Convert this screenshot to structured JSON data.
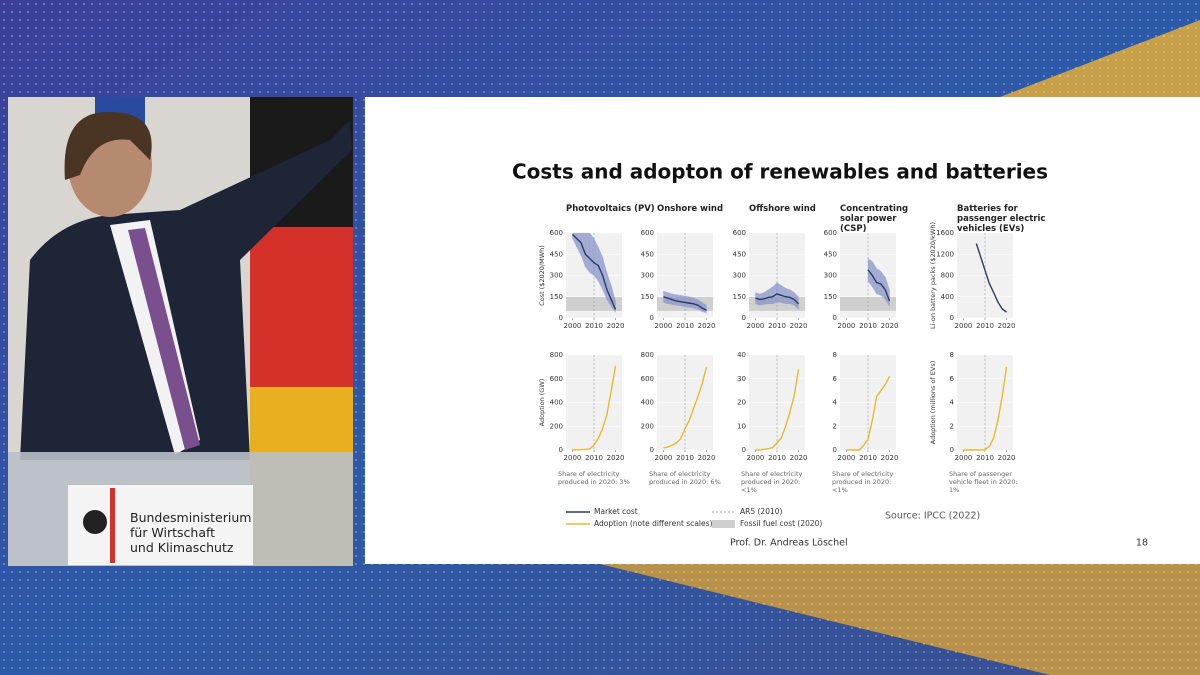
{
  "slide": {
    "title": "Costs and adopton of renewables and batteries",
    "source": "Source: IPCC (2022)",
    "presenter": "Prof. Dr. Andreas Löschel",
    "page": "18",
    "legend": [
      "Market cost",
      "Adoption (note different scales)",
      "AR5 (2010)",
      "Fossil fuel cost (2020)"
    ]
  },
  "podium": {
    "lines": [
      "Bundesministerium",
      "für Wirtschaft",
      "und Klimaschutz"
    ]
  },
  "chart_data": [
    {
      "type": "line",
      "title": "Photovoltaics (PV)",
      "ylabel": "Cost ($2020/MWh)",
      "color": "#2b3a67",
      "x": [
        2000,
        2002,
        2004,
        2006,
        2008,
        2010,
        2012,
        2014,
        2016,
        2018,
        2020
      ],
      "values": [
        590,
        560,
        530,
        450,
        420,
        390,
        370,
        300,
        200,
        130,
        60
      ],
      "lower": [
        560,
        500,
        440,
        360,
        320,
        300,
        260,
        200,
        130,
        80,
        40
      ],
      "upper": [
        600,
        600,
        600,
        600,
        600,
        560,
        500,
        430,
        320,
        230,
        120
      ],
      "fossil_range": [
        50,
        150
      ],
      "ar5_year": 2010,
      "xlim": [
        1997,
        2023
      ],
      "xticks": [
        2000,
        2010,
        2020
      ],
      "ylim": [
        0,
        600
      ],
      "yticks": [
        0,
        150,
        300,
        450,
        600
      ]
    },
    {
      "type": "line",
      "title": "Onshore wind",
      "color": "#2b3a67",
      "x": [
        2000,
        2002,
        2004,
        2006,
        2008,
        2010,
        2012,
        2014,
        2016,
        2018,
        2020
      ],
      "values": [
        150,
        140,
        130,
        120,
        115,
        110,
        105,
        100,
        90,
        70,
        55
      ],
      "lower": [
        110,
        100,
        95,
        90,
        85,
        80,
        75,
        70,
        60,
        45,
        35
      ],
      "upper": [
        190,
        180,
        170,
        165,
        160,
        155,
        150,
        140,
        130,
        110,
        90
      ],
      "fossil_range": [
        50,
        150
      ],
      "ar5_year": 2010,
      "xlim": [
        1997,
        2023
      ],
      "xticks": [
        2000,
        2010,
        2020
      ],
      "ylim": [
        0,
        600
      ],
      "yticks": [
        0,
        150,
        300,
        450,
        600
      ]
    },
    {
      "type": "line",
      "title": "Offshore wind",
      "color": "#2b3a67",
      "x": [
        2000,
        2002,
        2004,
        2006,
        2008,
        2010,
        2012,
        2014,
        2016,
        2018,
        2020
      ],
      "values": [
        140,
        130,
        135,
        145,
        150,
        170,
        160,
        150,
        145,
        130,
        100
      ],
      "lower": [
        100,
        90,
        95,
        100,
        100,
        110,
        110,
        100,
        100,
        90,
        60
      ],
      "upper": [
        180,
        170,
        180,
        200,
        220,
        250,
        230,
        210,
        200,
        180,
        150
      ],
      "fossil_range": [
        50,
        150
      ],
      "ar5_year": 2010,
      "xlim": [
        1997,
        2023
      ],
      "xticks": [
        2000,
        2010,
        2020
      ],
      "ylim": [
        0,
        600
      ],
      "yticks": [
        0,
        150,
        300,
        450,
        600
      ]
    },
    {
      "type": "line",
      "title": "Concentrating solar power (CSP)",
      "color": "#2b3a67",
      "x": [
        2000,
        2002,
        2004,
        2006,
        2008,
        2010,
        2012,
        2014,
        2016,
        2018,
        2020
      ],
      "values": [
        null,
        null,
        null,
        null,
        null,
        340,
        300,
        250,
        240,
        200,
        120
      ],
      "lower": [
        null,
        null,
        null,
        null,
        null,
        260,
        220,
        170,
        160,
        130,
        80
      ],
      "upper": [
        null,
        null,
        null,
        null,
        null,
        420,
        400,
        350,
        330,
        290,
        200
      ],
      "fossil_range": [
        50,
        150
      ],
      "ar5_year": 2010,
      "xlim": [
        1997,
        2023
      ],
      "xticks": [
        2000,
        2010,
        2020
      ],
      "ylim": [
        0,
        600
      ],
      "yticks": [
        0,
        150,
        300,
        450,
        600
      ]
    },
    {
      "type": "line",
      "title": "Batteries for passenger electric vehicles (EVs)",
      "ylabel": "Li-on battery packs ($2020/kWh)",
      "color": "#2b3a67",
      "x": [
        2000,
        2002,
        2004,
        2006,
        2008,
        2010,
        2012,
        2014,
        2016,
        2018,
        2020
      ],
      "values": [
        null,
        null,
        null,
        1400,
        1150,
        900,
        650,
        480,
        300,
        170,
        110
      ],
      "ar5_year": 2010,
      "xlim": [
        1997,
        2023
      ],
      "xticks": [
        2000,
        2010,
        2020
      ],
      "ylim": [
        0,
        1600
      ],
      "yticks": [
        0,
        400,
        800,
        1200,
        1600
      ]
    },
    {
      "type": "line",
      "ylabel": "Adoption (GW)",
      "note": "Share of electricity produced in 2020: 3%",
      "color": "#e8b92e",
      "x": [
        2000,
        2002,
        2004,
        2006,
        2008,
        2010,
        2012,
        2014,
        2016,
        2018,
        2020
      ],
      "values": [
        1,
        2,
        3,
        5,
        10,
        40,
        100,
        180,
        300,
        500,
        710
      ],
      "ar5_year": 2010,
      "xlim": [
        1997,
        2023
      ],
      "xticks": [
        2000,
        2010,
        2020
      ],
      "ylim": [
        0,
        800
      ],
      "yticks": [
        0,
        200,
        400,
        600,
        800
      ]
    },
    {
      "type": "line",
      "note": "Share of electricity produced in 2020: 6%",
      "color": "#e8b92e",
      "x": [
        2000,
        2002,
        2004,
        2006,
        2008,
        2010,
        2012,
        2014,
        2016,
        2018,
        2020
      ],
      "values": [
        17,
        25,
        40,
        60,
        95,
        180,
        250,
        350,
        450,
        560,
        700
      ],
      "ar5_year": 2010,
      "xlim": [
        1997,
        2023
      ],
      "xticks": [
        2000,
        2010,
        2020
      ],
      "ylim": [
        0,
        800
      ],
      "yticks": [
        0,
        200,
        400,
        600,
        800
      ]
    },
    {
      "type": "line",
      "note": "Share of electricity produced in 2020: <1%",
      "color": "#e8b92e",
      "x": [
        2000,
        2002,
        2004,
        2006,
        2008,
        2010,
        2012,
        2014,
        2016,
        2018,
        2020
      ],
      "values": [
        0,
        0,
        0.3,
        0.6,
        1,
        3,
        5,
        10,
        16,
        23,
        34
      ],
      "ar5_year": 2010,
      "xlim": [
        1997,
        2023
      ],
      "xticks": [
        2000,
        2010,
        2020
      ],
      "ylim": [
        0,
        40
      ],
      "yticks": [
        0,
        10,
        20,
        30,
        40
      ]
    },
    {
      "type": "line",
      "note": "Share of electricity produced in 2020: <1%",
      "color": "#e8b92e",
      "x": [
        2000,
        2002,
        2004,
        2006,
        2008,
        2010,
        2012,
        2014,
        2016,
        2018,
        2020
      ],
      "values": [
        0,
        0,
        0,
        0,
        0.4,
        0.9,
        2.5,
        4.5,
        5,
        5.5,
        6.2
      ],
      "ar5_year": 2010,
      "xlim": [
        1997,
        2023
      ],
      "xticks": [
        2000,
        2010,
        2020
      ],
      "ylim": [
        0,
        8
      ],
      "yticks": [
        0,
        2,
        4,
        6,
        8
      ]
    },
    {
      "type": "line",
      "ylabel": "Adoption (millions of EVs)",
      "note": "Share of passenger vehicle fleet in 2020: 1%",
      "color": "#e8b92e",
      "x": [
        2000,
        2002,
        2004,
        2006,
        2008,
        2010,
        2012,
        2014,
        2016,
        2018,
        2020
      ],
      "values": [
        0,
        0,
        0,
        0,
        0,
        0.02,
        0.3,
        1,
        2.5,
        4.5,
        7
      ],
      "ar5_year": 2010,
      "xlim": [
        1997,
        2023
      ],
      "xticks": [
        2000,
        2010,
        2020
      ],
      "ylim": [
        0,
        8
      ],
      "yticks": [
        0,
        2,
        4,
        6,
        8
      ]
    }
  ]
}
